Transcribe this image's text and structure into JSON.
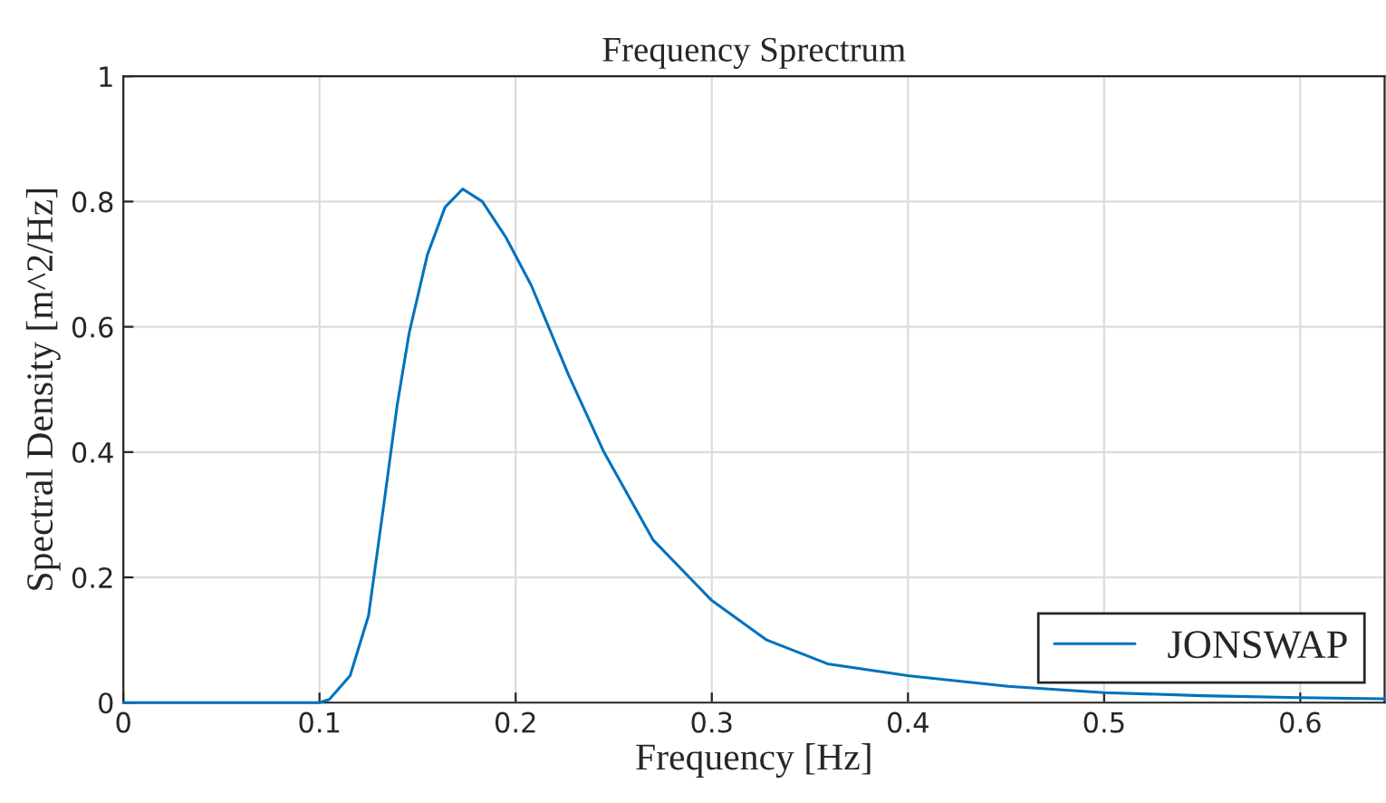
{
  "chart_data": {
    "type": "line",
    "title": "Frequency Sprectrum",
    "xlabel": "Frequency [Hz]",
    "ylabel": "Spectral Density [m^2/Hz]",
    "x": [
      0,
      0.1,
      0.105,
      0.1156,
      0.125,
      0.133,
      0.1396,
      0.1457,
      0.155,
      0.164,
      0.173,
      0.183,
      0.195,
      0.208,
      0.227,
      0.245,
      0.27,
      0.3,
      0.328,
      0.359,
      0.4,
      0.451,
      0.5,
      0.55,
      0.6,
      0.643
    ],
    "series": [
      {
        "name": "JONSWAP",
        "color": "#0072bd",
        "values": [
          0,
          0,
          0.005,
          0.043,
          0.139,
          0.321,
          0.475,
          0.59,
          0.715,
          0.791,
          0.82,
          0.8,
          0.743,
          0.666,
          0.523,
          0.4,
          0.26,
          0.163,
          0.1,
          0.062,
          0.043,
          0.026,
          0.016,
          0.011,
          0.008,
          0.006
        ]
      }
    ],
    "xlim": [
      0,
      0.643
    ],
    "ylim": [
      0,
      1
    ],
    "xticks": [
      0,
      0.1,
      0.2,
      0.3,
      0.4,
      0.5,
      0.6
    ],
    "yticks": [
      0,
      0.2,
      0.4,
      0.6,
      0.8,
      1
    ],
    "grid": true,
    "legend": "bottom right",
    "marker": "none",
    "line_style": "solid"
  }
}
